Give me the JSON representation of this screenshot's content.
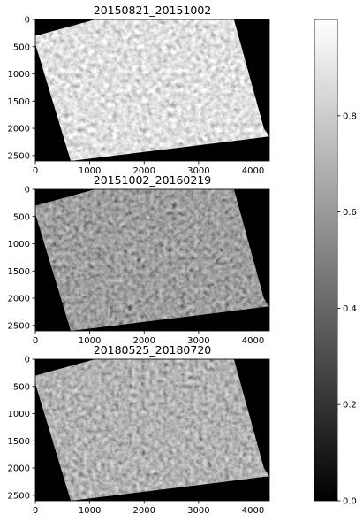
{
  "chart_data": [
    {
      "type": "heatmap",
      "title": "20150821_20151002",
      "xlim": [
        0,
        4300
      ],
      "ylim": [
        2600,
        0
      ],
      "x_ticks": [
        0,
        1000,
        2000,
        3000,
        4000
      ],
      "y_ticks": [
        0,
        500,
        1000,
        1500,
        2000,
        2500
      ],
      "colormap": "gray",
      "brightness": "bright",
      "footprint_corners": [
        [
          1100,
          0
        ],
        [
          3650,
          0
        ],
        [
          4200,
          2000
        ],
        [
          4300,
          2150
        ],
        [
          650,
          2600
        ],
        [
          0,
          450
        ],
        [
          0,
          300
        ]
      ]
    },
    {
      "type": "heatmap",
      "title": "20151002_20160219",
      "xlim": [
        0,
        4300
      ],
      "ylim": [
        2600,
        0
      ],
      "x_ticks": [
        0,
        1000,
        2000,
        3000,
        4000
      ],
      "y_ticks": [
        0,
        500,
        1000,
        1500,
        2000,
        2500
      ],
      "colormap": "gray",
      "brightness": "dark",
      "footprint_corners": [
        [
          1100,
          0
        ],
        [
          3650,
          0
        ],
        [
          4200,
          2000
        ],
        [
          4300,
          2150
        ],
        [
          650,
          2600
        ],
        [
          0,
          450
        ],
        [
          0,
          300
        ]
      ]
    },
    {
      "type": "heatmap",
      "title": "20180525_20180720",
      "xlim": [
        0,
        4300
      ],
      "ylim": [
        2600,
        0
      ],
      "x_ticks": [
        0,
        1000,
        2000,
        3000,
        4000
      ],
      "y_ticks": [
        0,
        500,
        1000,
        1500,
        2000,
        2500
      ],
      "colormap": "gray",
      "brightness": "medium-dark",
      "footprint_corners": [
        [
          1100,
          0
        ],
        [
          3650,
          0
        ],
        [
          4200,
          2000
        ],
        [
          4300,
          2150
        ],
        [
          650,
          2600
        ],
        [
          0,
          450
        ],
        [
          0,
          300
        ]
      ]
    }
  ],
  "colorbar": {
    "range": [
      0.0,
      1.0
    ],
    "ticks": [
      0.0,
      0.2,
      0.4,
      0.6,
      0.8
    ],
    "tick_labels": [
      "0.0",
      "0.2",
      "0.4",
      "0.6",
      "0.8"
    ],
    "colormap": "gray"
  }
}
